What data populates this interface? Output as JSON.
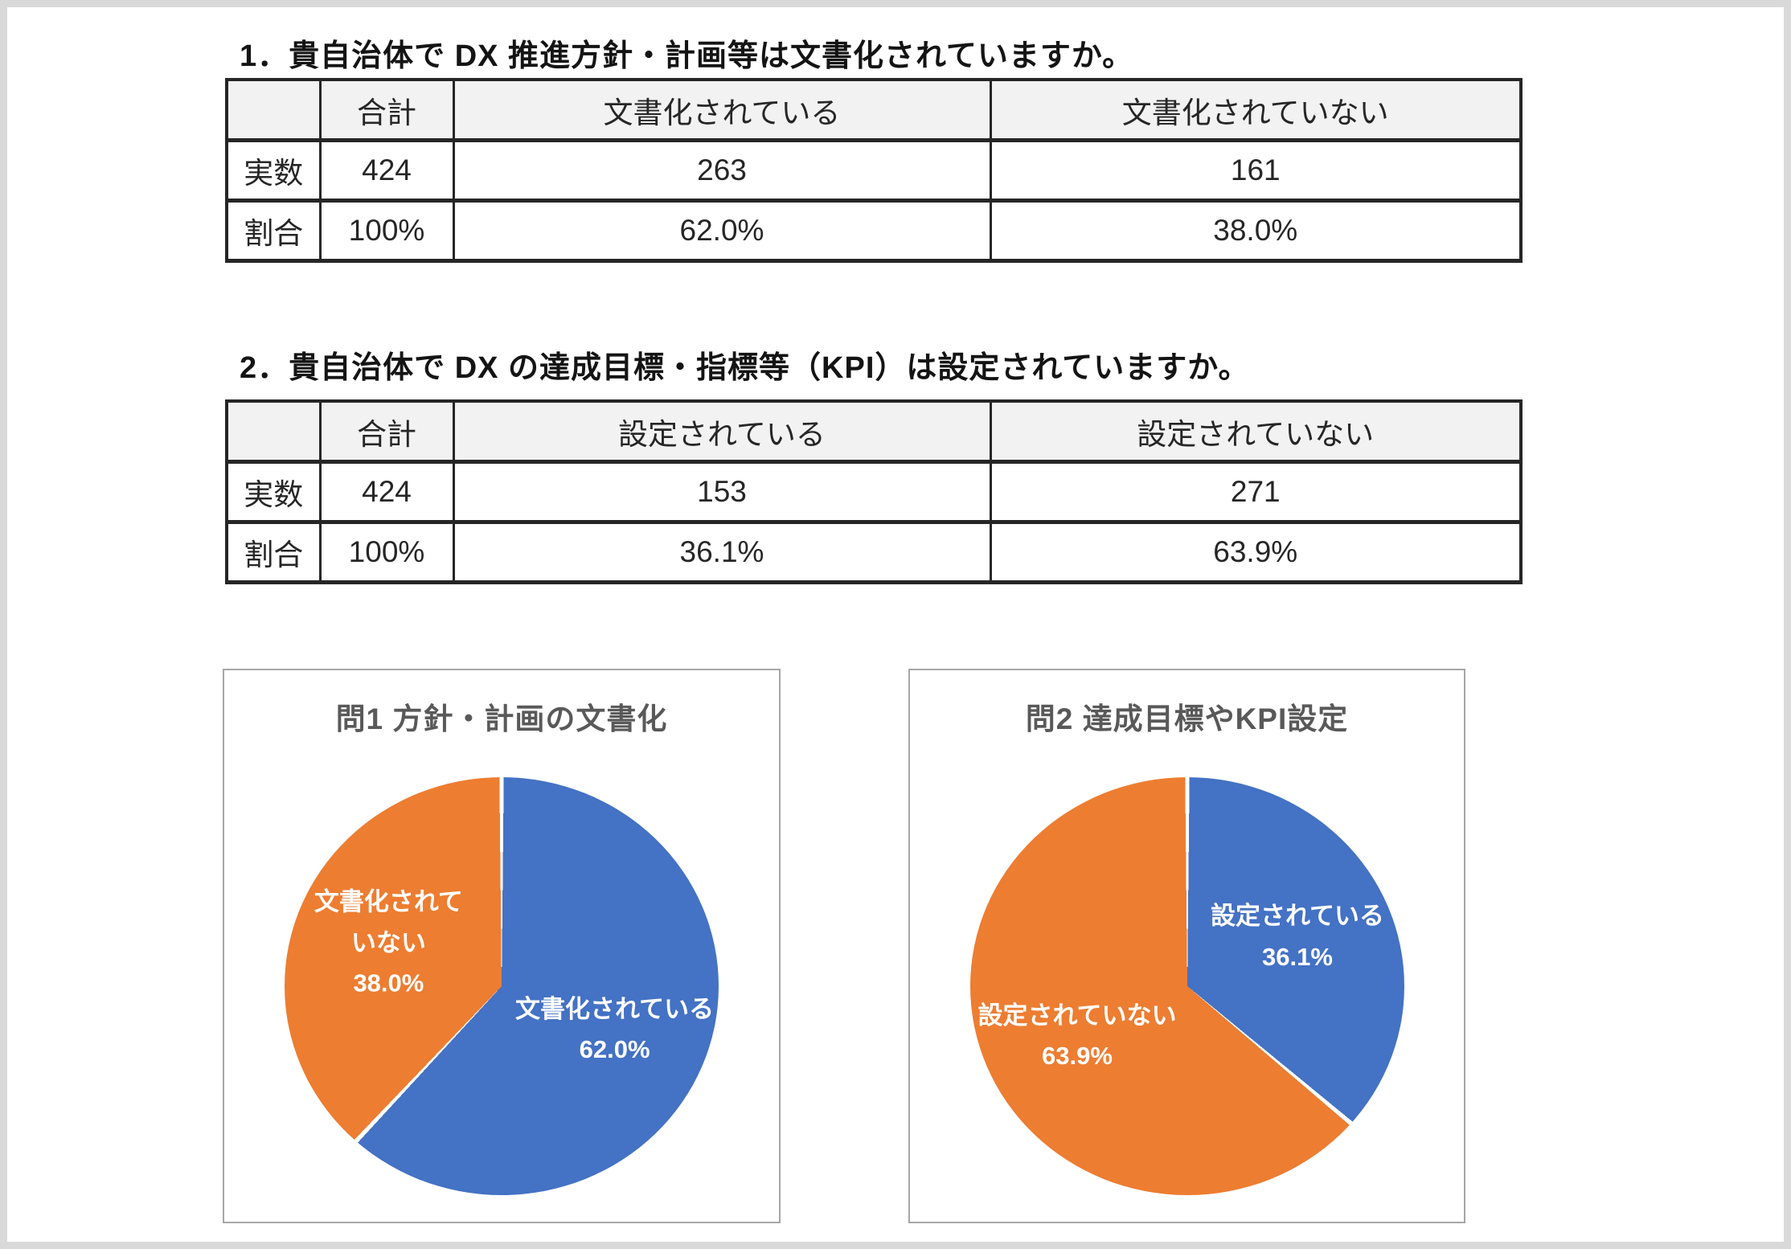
{
  "page": {
    "background": "#ffffff",
    "frame_color": "#d9d9d9",
    "description_visible_language": "ja"
  },
  "colors": {
    "pie_blue": "#4472C4",
    "pie_orange": "#ED7D31",
    "chart_title_text": "#595959",
    "table_header_bg": "#f2f2f2",
    "table_border": "#262626",
    "panel_border": "#a6a6a6"
  },
  "questions": [
    {
      "heading": "1．貴自治体で DX 推進方針・計画等は文書化されていますか。",
      "table": {
        "col_headers": [
          "",
          "合計",
          "文書化されている",
          "文書化されていない"
        ],
        "rows": [
          {
            "label": "実数",
            "values": [
              "424",
              "263",
              "161"
            ]
          },
          {
            "label": "割合",
            "values": [
              "100%",
              "62.0%",
              "38.0%"
            ]
          }
        ]
      }
    },
    {
      "heading": "2．貴自治体で DX の達成目標・指標等（KPI）は設定されていますか。",
      "table": {
        "col_headers": [
          "",
          "合計",
          "設定されている",
          "設定されていない"
        ],
        "rows": [
          {
            "label": "実数",
            "values": [
              "424",
              "153",
              "271"
            ]
          },
          {
            "label": "割合",
            "values": [
              "100%",
              "36.1%",
              "63.9%"
            ]
          }
        ]
      }
    }
  ],
  "chart_data": [
    {
      "type": "pie",
      "title": "問1 方針・計画の文書化",
      "start_angle_deg": 0,
      "direction": "clockwise",
      "legend": "none",
      "labels_position": "inside",
      "slices": [
        {
          "label": "文書化されている",
          "label_lines": [
            "文書化されている"
          ],
          "value": 62.0,
          "value_label": "62.0%",
          "color": "#4472C4"
        },
        {
          "label": "文書化されていない",
          "label_lines": [
            "文書化されて",
            "いない"
          ],
          "value": 38.0,
          "value_label": "38.0%",
          "color": "#ED7D31"
        }
      ]
    },
    {
      "type": "pie",
      "title": "問2 達成目標やKPI設定",
      "start_angle_deg": 0,
      "direction": "clockwise",
      "legend": "none",
      "labels_position": "inside",
      "slices": [
        {
          "label": "設定されている",
          "label_lines": [
            "設定されている"
          ],
          "value": 36.1,
          "value_label": "36.1%",
          "color": "#4472C4"
        },
        {
          "label": "設定されていない",
          "label_lines": [
            "設定されていない"
          ],
          "value": 63.9,
          "value_label": "63.9%",
          "color": "#ED7D31"
        }
      ]
    }
  ]
}
